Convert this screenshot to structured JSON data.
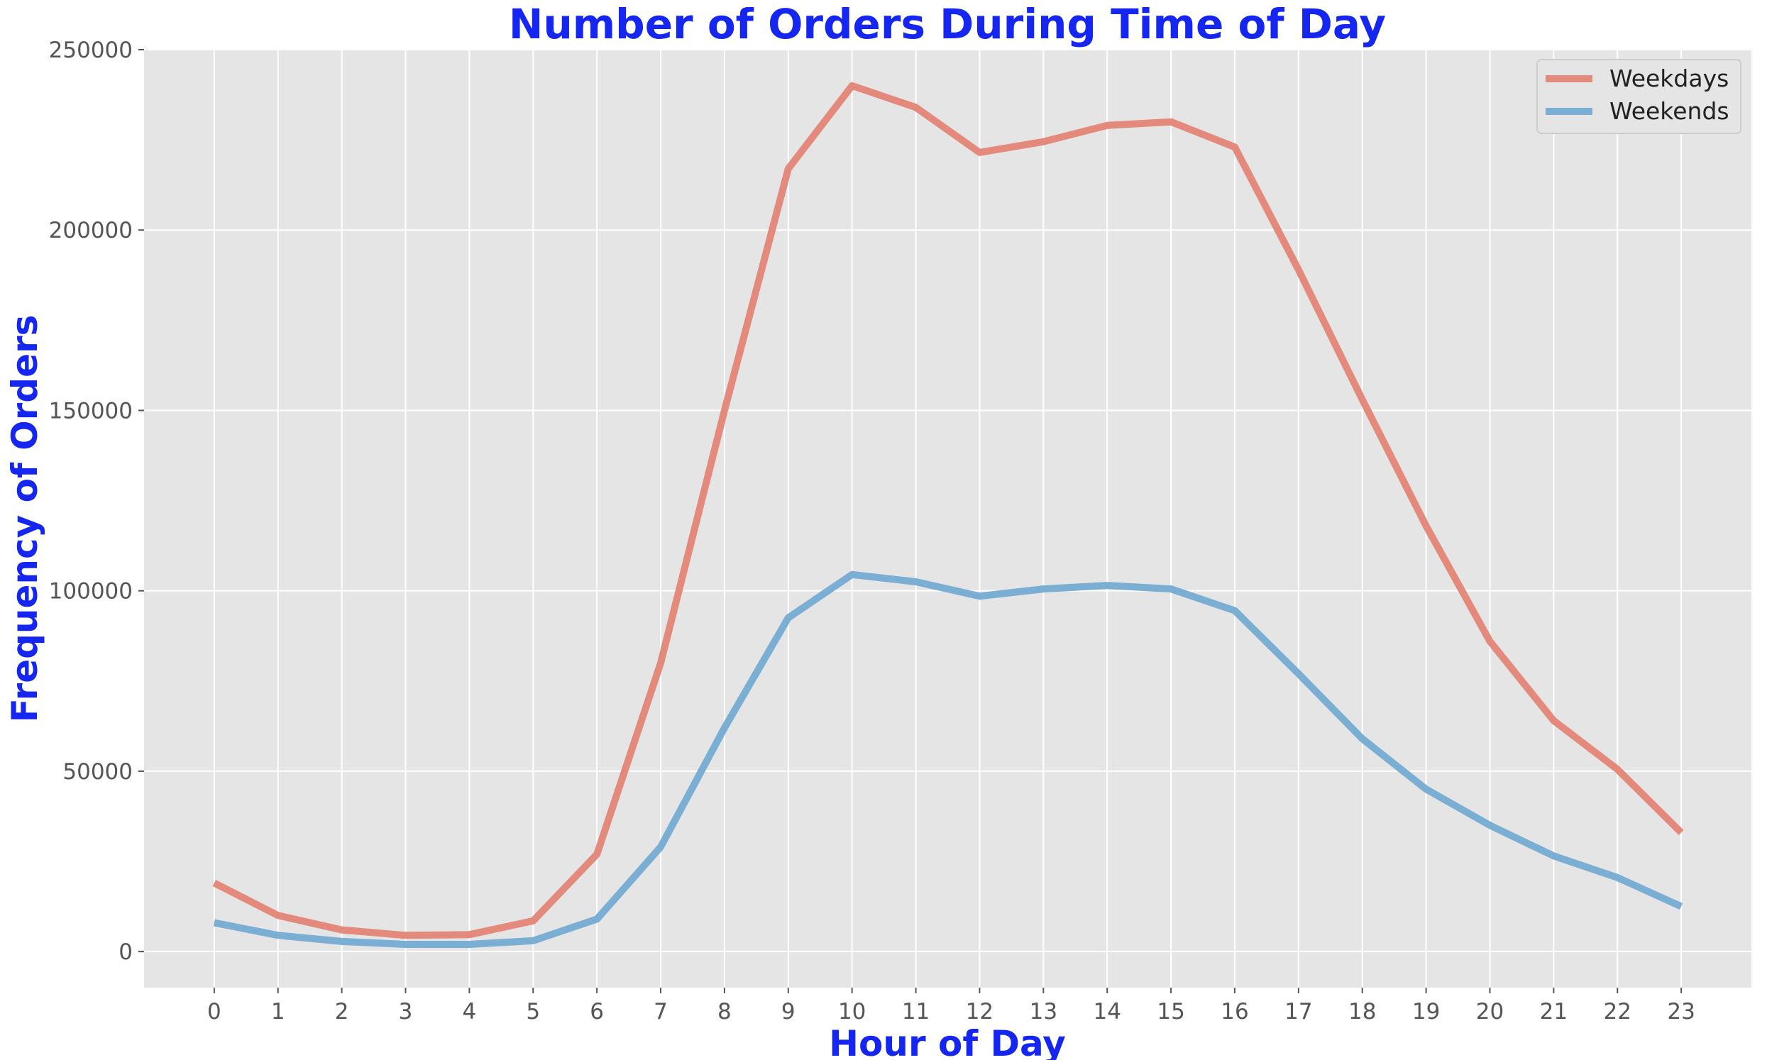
{
  "chart_data": {
    "type": "line",
    "title": "Number of Orders During Time of Day",
    "xlabel": "Hour of Day",
    "ylabel": "Frequency of Orders",
    "x": [
      0,
      1,
      2,
      3,
      4,
      5,
      6,
      7,
      8,
      9,
      10,
      11,
      12,
      13,
      14,
      15,
      16,
      17,
      18,
      19,
      20,
      21,
      22,
      23
    ],
    "x_tick_labels": [
      "0",
      "1",
      "2",
      "3",
      "4",
      "5",
      "6",
      "7",
      "8",
      "9",
      "10",
      "11",
      "12",
      "13",
      "14",
      "15",
      "16",
      "17",
      "18",
      "19",
      "20",
      "21",
      "22",
      "23"
    ],
    "y_ticks": [
      0,
      50000,
      100000,
      150000,
      200000,
      250000
    ],
    "y_tick_labels": [
      "0",
      "50000",
      "100000",
      "150000",
      "200000",
      "250000"
    ],
    "xlim": [
      -1.1,
      24.1
    ],
    "ylim": [
      -10000,
      250000
    ],
    "grid": true,
    "legend_position": "top-right",
    "series": [
      {
        "name": "Weekdays",
        "color": "#e48a7d",
        "values": [
          19000,
          10000,
          6000,
          4500,
          4700,
          8500,
          27000,
          80000,
          150000,
          217000,
          240000,
          234000,
          221500,
          224500,
          229000,
          230000,
          223000,
          189000,
          153000,
          118000,
          86000,
          64000,
          50500,
          33000
        ]
      },
      {
        "name": "Weekends",
        "color": "#7aaed2",
        "values": [
          8000,
          4500,
          2800,
          2000,
          2000,
          3000,
          9000,
          29000,
          62000,
          92500,
          104500,
          102500,
          98500,
          100500,
          101500,
          100500,
          94500,
          77000,
          59000,
          45000,
          35000,
          26500,
          20500,
          12500
        ]
      }
    ]
  }
}
